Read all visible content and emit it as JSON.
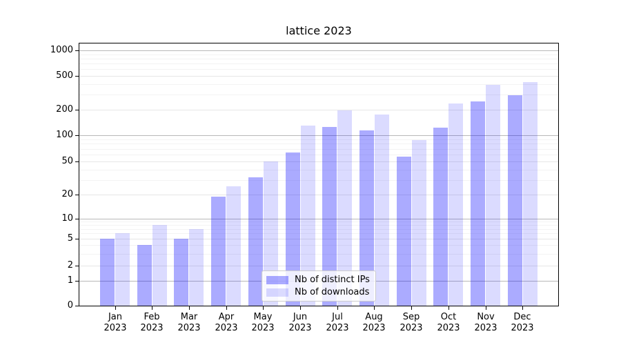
{
  "title": "lattice 2023",
  "chart_data": {
    "type": "bar",
    "title": "lattice 2023",
    "categories": [
      "Jan 2023",
      "Feb 2023",
      "Mar 2023",
      "Apr 2023",
      "May 2023",
      "Jun 2023",
      "Jul 2023",
      "Aug 2023",
      "Sep 2023",
      "Oct 2023",
      "Nov 2023",
      "Dec 2023"
    ],
    "series": [
      {
        "name": "Nb of distinct IPs",
        "color": "rgba(0,0,255,0.33)",
        "values": [
          5,
          4,
          5,
          19,
          32,
          63,
          125,
          114,
          57,
          123,
          252,
          295
        ]
      },
      {
        "name": "Nb of downloads",
        "color": "rgba(0,0,255,0.14)",
        "values": [
          6,
          8,
          7,
          25,
          50,
          130,
          195,
          175,
          88,
          235,
          390,
          425
        ]
      }
    ],
    "xlabel": "",
    "ylabel": "",
    "yscale": "symlog",
    "yticks": [
      0,
      1,
      2,
      5,
      10,
      20,
      50,
      100,
      200,
      500,
      1000
    ],
    "ylim": [
      0,
      1200
    ],
    "grid": true,
    "legend_position": "lower center"
  },
  "colors": {
    "grid_decade": "#b8b8b8",
    "grid_labeled": "#e6e6e6",
    "grid_minor": "#f3f3f3",
    "spine": "#000000"
  }
}
